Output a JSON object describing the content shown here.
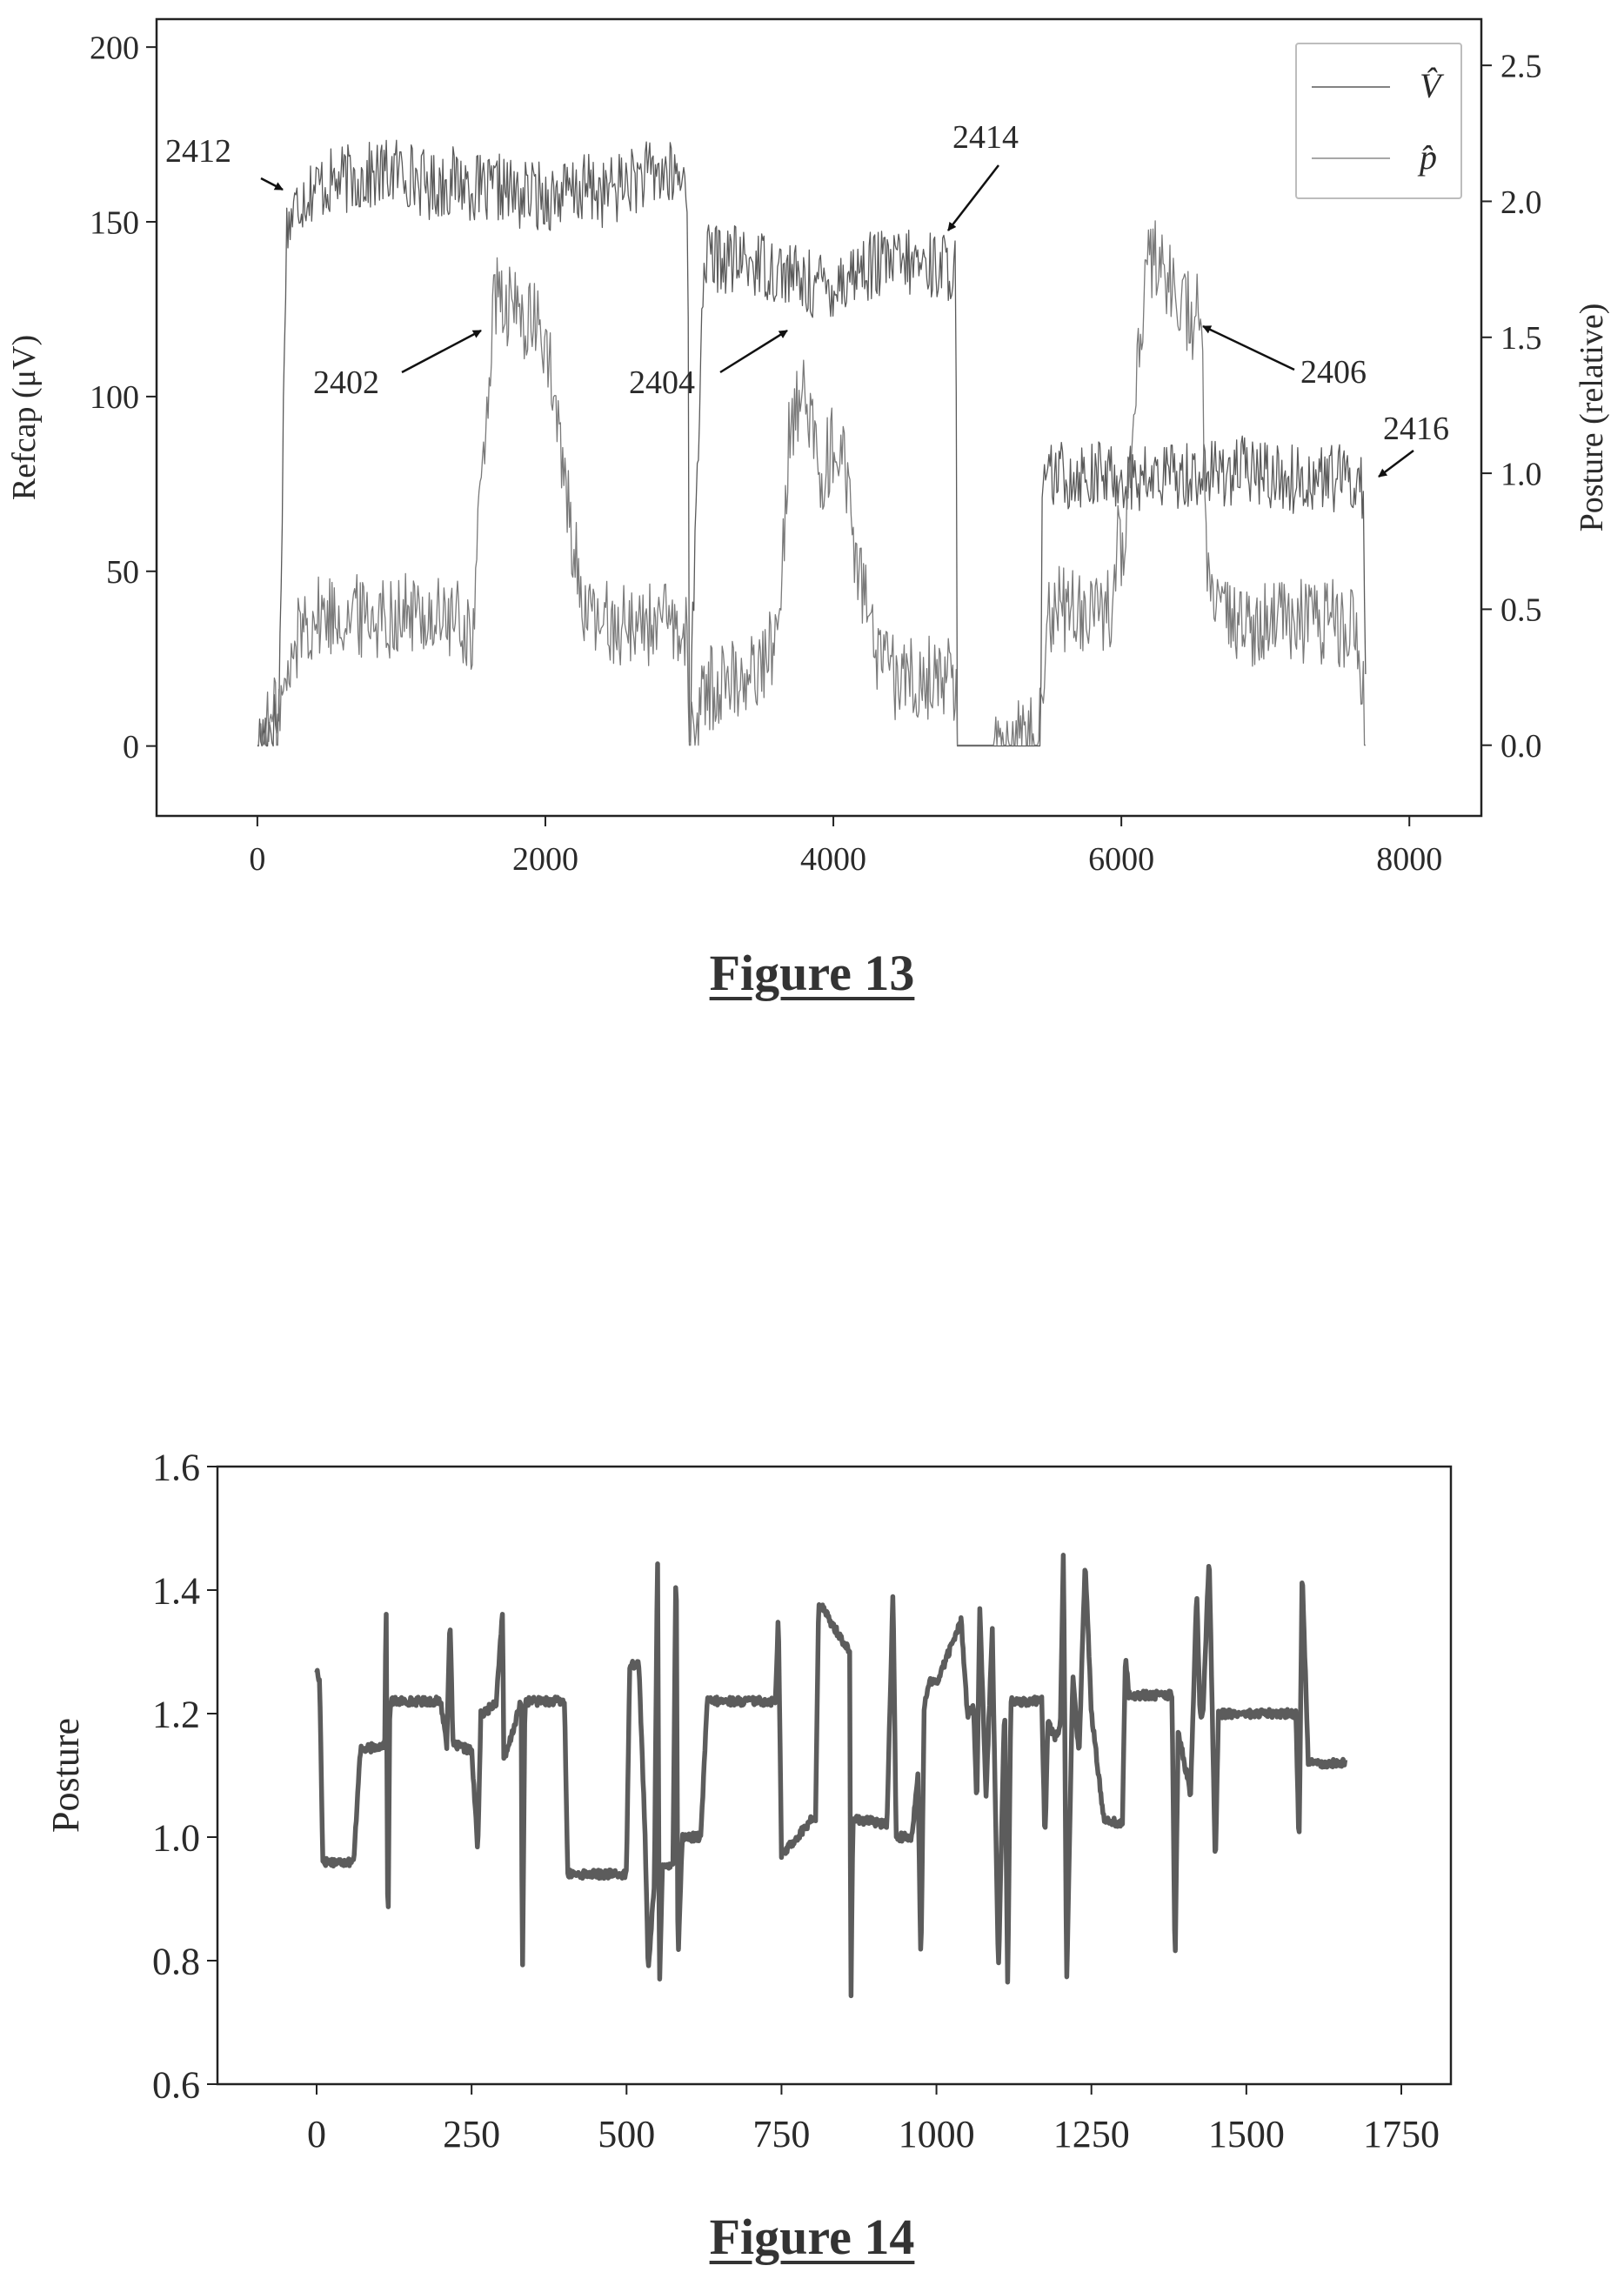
{
  "figures": {
    "fig13_caption": "Figure 13",
    "fig14_caption": "Figure 14"
  },
  "chart_data": [
    {
      "type": "line",
      "xlim": [
        -700,
        8500
      ],
      "ylim": [
        -20,
        208
      ],
      "y2lim": [
        -0.26,
        2.67
      ],
      "xticks": [
        0,
        2000,
        4000,
        6000,
        8000
      ],
      "yticks": [
        0,
        50,
        100,
        150,
        200
      ],
      "y2ticks": [
        0.0,
        0.5,
        1.0,
        1.5,
        2.0,
        2.5
      ],
      "xlabel": "",
      "ylabel": "Refcap (μV)",
      "y2label": "Posture (relative)",
      "legend": {
        "position": "top-right",
        "entries": [
          "V̂",
          "p̂"
        ]
      },
      "series": [
        {
          "name": "V̂",
          "axis": "left",
          "noise": 10,
          "x": [
            0,
            60,
            150,
            200,
            300,
            400,
            600,
            800,
            1000,
            1200,
            1400,
            1500,
            1600,
            1700,
            1800,
            1900,
            2000,
            2100,
            2200,
            2300,
            2400,
            2600,
            2800,
            2950,
            2990,
            3000,
            3100,
            3500,
            3700,
            3800,
            4000,
            4200,
            4400,
            4600,
            4850,
            4860,
            5000,
            5300,
            5440,
            5450,
            5500,
            5700,
            6000,
            6200,
            6400,
            6600,
            6800,
            7000,
            7200,
            7400,
            7600,
            7680,
            7700
          ],
          "y": [
            0,
            5,
            8,
            148,
            157,
            160,
            162,
            163,
            165,
            160,
            162,
            160,
            158,
            160,
            157,
            158,
            157,
            158,
            158,
            160,
            158,
            162,
            164,
            162,
            160,
            0,
            140,
            138,
            135,
            132,
            132,
            137,
            138,
            138,
            137,
            0,
            0,
            0,
            0,
            70,
            77,
            78,
            77,
            76,
            78,
            78,
            79,
            78,
            76,
            77,
            76,
            75,
            0
          ]
        },
        {
          "name": "p̂",
          "axis": "right",
          "noise": 0.16,
          "x": [
            0,
            60,
            120,
            200,
            300,
            500,
            800,
            1100,
            1400,
            1500,
            1550,
            1650,
            1700,
            1800,
            1900,
            2000,
            2100,
            2150,
            2250,
            2300,
            2400,
            2600,
            2800,
            2980,
            3000,
            3100,
            3300,
            3500,
            3600,
            3650,
            3700,
            3800,
            3900,
            4000,
            4100,
            4150,
            4200,
            4300,
            4400,
            4600,
            4850,
            4860,
            5100,
            5400,
            5500,
            5700,
            5950,
            5980,
            6000,
            6100,
            6200,
            6300,
            6400,
            6500,
            6550,
            6600,
            6700,
            6900,
            7200,
            7500,
            7650,
            7700
          ],
          "y": [
            0.0,
            0.05,
            0.1,
            0.2,
            0.45,
            0.48,
            0.48,
            0.48,
            0.45,
            0.4,
            0.95,
            1.65,
            1.6,
            1.6,
            1.55,
            1.5,
            1.1,
            0.9,
            0.55,
            0.45,
            0.45,
            0.45,
            0.45,
            0.4,
            0.0,
            0.2,
            0.25,
            0.28,
            0.4,
            0.75,
            1.2,
            1.3,
            1.0,
            1.1,
            1.0,
            0.7,
            0.6,
            0.3,
            0.25,
            0.25,
            0.25,
            0.0,
            0.0,
            0.05,
            0.5,
            0.5,
            0.5,
            1.0,
            0.6,
            1.4,
            1.8,
            1.75,
            1.65,
            1.55,
            1.6,
            0.6,
            0.45,
            0.45,
            0.45,
            0.45,
            0.4,
            0.0
          ]
        }
      ],
      "annotations": [
        {
          "text": "2412",
          "x": 200,
          "y": 164
        },
        {
          "text": "2402",
          "x": 1520,
          "y": 124
        },
        {
          "text": "2404",
          "x": 3620,
          "y": 124
        },
        {
          "text": "2414",
          "x": 4730,
          "y": 152
        },
        {
          "text": "2406",
          "x": 6550,
          "y": 125
        },
        {
          "text": "2416",
          "x": 7700,
          "y": 80
        }
      ]
    },
    {
      "type": "line",
      "xlim": [
        -160,
        1830
      ],
      "ylim": [
        0.6,
        1.6
      ],
      "xticks": [
        0,
        250,
        500,
        750,
        1000,
        1250,
        1500,
        1750
      ],
      "yticks": [
        0.6,
        0.8,
        1.0,
        1.2,
        1.4,
        1.6
      ],
      "xlabel": "",
      "ylabel": "Posture",
      "series": [
        {
          "noise": 0.007,
          "x": [
            0,
            5,
            10,
            25,
            60,
            70,
            110,
            112,
            115,
            118,
            120,
            200,
            210,
            215,
            220,
            250,
            260,
            265,
            270,
            290,
            300,
            302,
            305,
            330,
            332,
            336,
            340,
            400,
            405,
            500,
            505,
            520,
            530,
            535,
            545,
            550,
            553,
            558,
            575,
            580,
            583,
            590,
            620,
            630,
            740,
            745,
            750,
            800,
            805,
            810,
            860,
            862,
            865,
            870,
            920,
            930,
            935,
            960,
            970,
            975,
            980,
            985,
            990,
            1000,
            1040,
            1050,
            1060,
            1065,
            1070,
            1080,
            1090,
            1100,
            1110,
            1115,
            1120,
            1170,
            1175,
            1180,
            1190,
            1200,
            1205,
            1210,
            1220,
            1230,
            1240,
            1250,
            1270,
            1300,
            1305,
            1310,
            1380,
            1385,
            1390,
            1410,
            1420,
            1425,
            1430,
            1440,
            1450,
            1455,
            1460,
            1580,
            1585,
            1590,
            1600,
            1660
          ],
          "y": [
            1.27,
            1.25,
            0.96,
            0.96,
            0.96,
            1.14,
            1.15,
            1.41,
            0.81,
            1.2,
            1.22,
            1.22,
            1.15,
            1.36,
            1.15,
            1.14,
            0.98,
            1.2,
            1.2,
            1.22,
            1.37,
            1.13,
            1.13,
            1.22,
            0.75,
            1.22,
            1.22,
            1.22,
            0.94,
            0.94,
            1.28,
            1.28,
            1.0,
            0.78,
            0.93,
            1.48,
            0.75,
            0.95,
            0.96,
            1.48,
            0.8,
            1.0,
            1.0,
            1.22,
            1.22,
            1.36,
            0.97,
            1.03,
            1.03,
            1.38,
            1.3,
            0.72,
            1.02,
            1.03,
            1.02,
            1.4,
            1.0,
            1.0,
            1.1,
            0.79,
            1.2,
            1.24,
            1.25,
            1.25,
            1.35,
            1.2,
            1.21,
            1.05,
            1.37,
            1.06,
            1.34,
            0.78,
            1.22,
            0.75,
            1.22,
            1.22,
            0.99,
            1.19,
            1.16,
            1.18,
            1.47,
            0.76,
            1.26,
            1.13,
            1.45,
            1.2,
            1.03,
            1.02,
            1.3,
            1.23,
            1.23,
            0.79,
            1.17,
            1.07,
            1.4,
            1.2,
            1.2,
            1.46,
            0.95,
            1.2,
            1.2,
            1.2,
            0.98,
            1.43,
            1.12,
            1.12
          ]
        }
      ]
    }
  ]
}
